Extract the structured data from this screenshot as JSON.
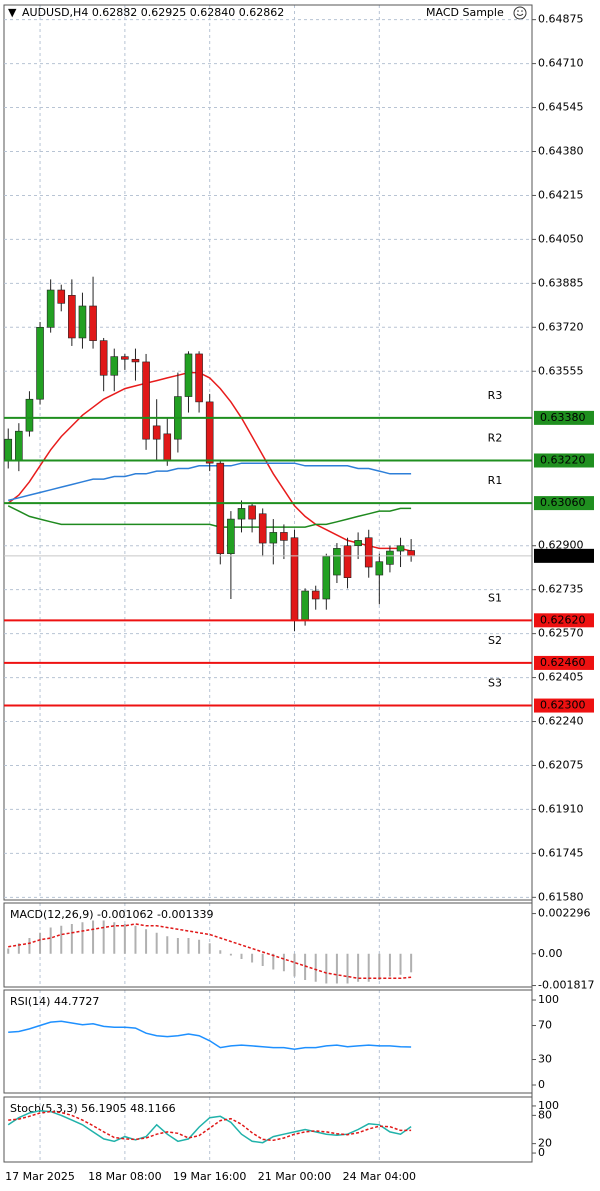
{
  "chart_data": [
    {
      "type": "candlestick",
      "title": "AUDUSD,H4  0.62882 0.62925 0.62840 0.62862",
      "subtitle": "MACD Sample",
      "xlim": [
        -0.4,
        49.4
      ],
      "xticks": [
        {
          "value": 3,
          "label": "17 Mar 2025"
        },
        {
          "value": 11,
          "label": "18 Mar 08:00"
        },
        {
          "value": 19,
          "label": "19 Mar 16:00"
        },
        {
          "value": 27,
          "label": "21 Mar 00:00"
        },
        {
          "value": 35,
          "label": "24 Mar 04:00"
        }
      ],
      "ylim": [
        0.6157,
        0.6493
      ],
      "yticks": [
        0.64875,
        {
          "value": 0.6471,
          "label": "0.64710"
        },
        0.64545,
        {
          "value": 0.6438,
          "label": "0.64380"
        },
        0.64215,
        {
          "value": 0.6405,
          "label": "0.64050"
        },
        0.63885,
        {
          "value": 0.6372,
          "label": "0.63720"
        },
        0.63555,
        {
          "value": 0.629,
          "label": "0.62900"
        },
        0.62735,
        {
          "value": 0.6257,
          "label": "0.62570"
        },
        0.62405,
        {
          "value": 0.6224,
          "label": "0.62240"
        },
        0.62075,
        {
          "value": 0.6191,
          "label": "0.61910"
        },
        0.61745,
        {
          "value": 0.6158,
          "label": "0.61580"
        }
      ],
      "grid": true,
      "up_color": "#22a022",
      "down_color": "#e01818",
      "open": [
        0.6322,
        0.6322,
        0.6333,
        0.6345,
        0.6372,
        0.6386,
        0.6384,
        0.6368,
        0.638,
        0.6367,
        0.6354,
        0.6361,
        0.636,
        0.6359,
        0.6335,
        0.6332,
        0.633,
        0.6346,
        0.6362,
        0.6344,
        0.6321,
        0.6287,
        0.63,
        0.6305,
        0.6302,
        0.6291,
        0.6295,
        0.6293,
        0.6262,
        0.6273,
        0.627,
        0.6279,
        0.629,
        0.629,
        0.6293,
        0.6279,
        0.6283,
        0.6288,
        0.62882
      ],
      "high": [
        0.6334,
        0.6336,
        0.6348,
        0.6374,
        0.639,
        0.6388,
        0.639,
        0.6385,
        0.6391,
        0.6368,
        0.6364,
        0.6362,
        0.6364,
        0.6362,
        0.6345,
        0.6338,
        0.6355,
        0.6363,
        0.6363,
        0.6347,
        0.6322,
        0.6303,
        0.6307,
        0.6306,
        0.6304,
        0.63,
        0.6298,
        0.6296,
        0.6274,
        0.6275,
        0.6287,
        0.6291,
        0.6293,
        0.6295,
        0.6296,
        0.6287,
        0.629,
        0.6293,
        0.62925
      ],
      "low": [
        0.6319,
        0.6318,
        0.6331,
        0.6343,
        0.637,
        0.6378,
        0.6365,
        0.6364,
        0.6364,
        0.6348,
        0.6348,
        0.6356,
        0.6352,
        0.6326,
        0.6322,
        0.632,
        0.6325,
        0.634,
        0.634,
        0.6318,
        0.6283,
        0.627,
        0.6295,
        0.6295,
        0.6286,
        0.6283,
        0.6285,
        0.6258,
        0.626,
        0.6266,
        0.6266,
        0.6276,
        0.6274,
        0.6285,
        0.6278,
        0.6268,
        0.628,
        0.6282,
        0.6284
      ],
      "close": [
        0.633,
        0.6333,
        0.6345,
        0.6372,
        0.6386,
        0.6381,
        0.6368,
        0.638,
        0.6367,
        0.6354,
        0.6361,
        0.636,
        0.6359,
        0.633,
        0.633,
        0.6322,
        0.6346,
        0.6362,
        0.6344,
        0.6321,
        0.6287,
        0.63,
        0.6304,
        0.63,
        0.6291,
        0.6295,
        0.6292,
        0.6262,
        0.6273,
        0.627,
        0.6286,
        0.6289,
        0.6278,
        0.6292,
        0.6282,
        0.6284,
        0.6288,
        0.629,
        0.62862
      ],
      "lines": [
        {
          "color": "#e81c1c",
          "values": [
            0.6306,
            0.6309,
            0.6314,
            0.632,
            0.6326,
            0.6331,
            0.6335,
            0.6339,
            0.6342,
            0.6345,
            0.6347,
            0.6349,
            0.635,
            0.6351,
            0.6352,
            0.6353,
            0.6354,
            0.6355,
            0.6355,
            0.6353,
            0.6349,
            0.6344,
            0.6338,
            0.6331,
            0.6324,
            0.6317,
            0.6311,
            0.6305,
            0.6301,
            0.6298,
            0.6296,
            0.6294,
            0.6292,
            0.6291,
            0.629,
            0.6289,
            0.6289,
            0.6289,
            0.6288
          ]
        },
        {
          "color": "#2e7fd8",
          "values": [
            0.6307,
            0.6308,
            0.6309,
            0.631,
            0.6311,
            0.6312,
            0.6313,
            0.6314,
            0.6315,
            0.6315,
            0.6316,
            0.6316,
            0.6317,
            0.6317,
            0.6318,
            0.6318,
            0.6319,
            0.6319,
            0.632,
            0.632,
            0.632,
            0.632,
            0.6321,
            0.6321,
            0.6321,
            0.6321,
            0.6321,
            0.6321,
            0.632,
            0.632,
            0.632,
            0.632,
            0.632,
            0.6319,
            0.6319,
            0.6318,
            0.6317,
            0.6317,
            0.6317
          ]
        },
        {
          "color": "#1f8a1f",
          "values": [
            0.6305,
            0.6303,
            0.6301,
            0.63,
            0.6299,
            0.6298,
            0.6298,
            0.6298,
            0.6298,
            0.6298,
            0.6298,
            0.6298,
            0.6298,
            0.6298,
            0.6298,
            0.6298,
            0.6298,
            0.6298,
            0.6298,
            0.6298,
            0.6297,
            0.6297,
            0.6297,
            0.6297,
            0.6297,
            0.6297,
            0.6297,
            0.6297,
            0.6297,
            0.6298,
            0.6298,
            0.6299,
            0.63,
            0.6301,
            0.6302,
            0.6303,
            0.6303,
            0.6304,
            0.6304
          ]
        }
      ],
      "levels": [
        {
          "name": "R3",
          "value": 0.6338,
          "value_label": "0.63380",
          "color": "#1f8f1f"
        },
        {
          "name": "R2",
          "value": 0.6322,
          "value_label": "0.63220",
          "color": "#1f8f1f"
        },
        {
          "name": "R1",
          "value": 0.6306,
          "value_label": "0.63060",
          "color": "#1f8f1f"
        },
        {
          "name": "S1",
          "value": 0.6262,
          "value_label": "0.62620",
          "color": "#ee1111"
        },
        {
          "name": "S2",
          "value": 0.6246,
          "value_label": "0.62460",
          "color": "#ee1111"
        },
        {
          "name": "S3",
          "value": 0.623,
          "value_label": "0.62300",
          "color": "#ee1111"
        }
      ]
    },
    {
      "type": "macd",
      "title": "MACD(12,26,9) -0.001062 -0.001339",
      "ylim": [
        -0.0019,
        0.0029
      ],
      "yticks": [
        0.002296,
        {
          "value": 0,
          "label": "0.00"
        },
        -0.001817
      ],
      "color": "#b0b0b0",
      "signal_color": "#e01818",
      "values": [
        0.0003,
        0.0006,
        0.0009,
        0.0012,
        0.0015,
        0.0016,
        0.0017,
        0.0018,
        0.0019,
        0.0019,
        0.0018,
        0.0017,
        0.0016,
        0.0014,
        0.0012,
        0.001,
        0.0009,
        0.0009,
        0.0008,
        0.0006,
        0.0002,
        -0.0001,
        -0.0003,
        -0.0005,
        -0.0007,
        -0.0009,
        -0.001,
        -0.0013,
        -0.0015,
        -0.0016,
        -0.0017,
        -0.0017,
        -0.0017,
        -0.0016,
        -0.0016,
        -0.0015,
        -0.0013,
        -0.0012,
        -0.001062
      ],
      "signal": [
        0.0004,
        0.0005,
        0.0006,
        0.0008,
        0.0009,
        0.0011,
        0.0012,
        0.0013,
        0.0014,
        0.0015,
        0.0016,
        0.0016,
        0.0017,
        0.0016,
        0.0016,
        0.0015,
        0.0014,
        0.0013,
        0.0012,
        0.0011,
        0.0009,
        0.0007,
        0.0005,
        0.0003,
        0.0001,
        -0.0001,
        -0.0003,
        -0.0005,
        -0.0007,
        -0.0009,
        -0.0011,
        -0.0012,
        -0.0013,
        -0.0014,
        -0.0014,
        -0.0014,
        -0.0014,
        -0.0014,
        -0.001339
      ]
    },
    {
      "type": "line",
      "title": "RSI(14) 44.7727",
      "ylim": [
        -9.4,
        111.8
      ],
      "yticks": [
        100,
        70,
        30,
        0
      ],
      "series": [
        {
          "color": "#1e90ff",
          "values": [
            62,
            63,
            66,
            70,
            74,
            75,
            73,
            71,
            72,
            69,
            68,
            68,
            67,
            61,
            58,
            57,
            58,
            60,
            58,
            52,
            44,
            46,
            47,
            46,
            45,
            44,
            44,
            42,
            44,
            44,
            46,
            47,
            45,
            46,
            47,
            46,
            46,
            45,
            44.7727
          ]
        }
      ]
    },
    {
      "type": "line",
      "title": "Stoch(5,3,3) 56.1905 48.1166",
      "ylim": [
        -19,
        119
      ],
      "yticks": [
        100,
        80,
        20,
        0
      ],
      "series": [
        {
          "color": "#20b2aa",
          "values": [
            60,
            75,
            85,
            90,
            88,
            80,
            70,
            60,
            45,
            30,
            25,
            35,
            28,
            35,
            60,
            40,
            25,
            30,
            55,
            75,
            78,
            65,
            40,
            25,
            22,
            35,
            40,
            45,
            50,
            45,
            40,
            38,
            40,
            50,
            62,
            60,
            45,
            40,
            56.1905
          ]
        },
        {
          "color": "#e01818",
          "dash": true,
          "values": [
            70,
            72,
            78,
            85,
            88,
            86,
            80,
            70,
            58,
            45,
            33,
            30,
            29,
            32,
            40,
            45,
            42,
            32,
            37,
            53,
            69,
            73,
            61,
            43,
            29,
            27,
            32,
            40,
            45,
            47,
            45,
            41,
            39,
            43,
            51,
            57,
            56,
            48,
            48.1166
          ]
        }
      ]
    }
  ]
}
